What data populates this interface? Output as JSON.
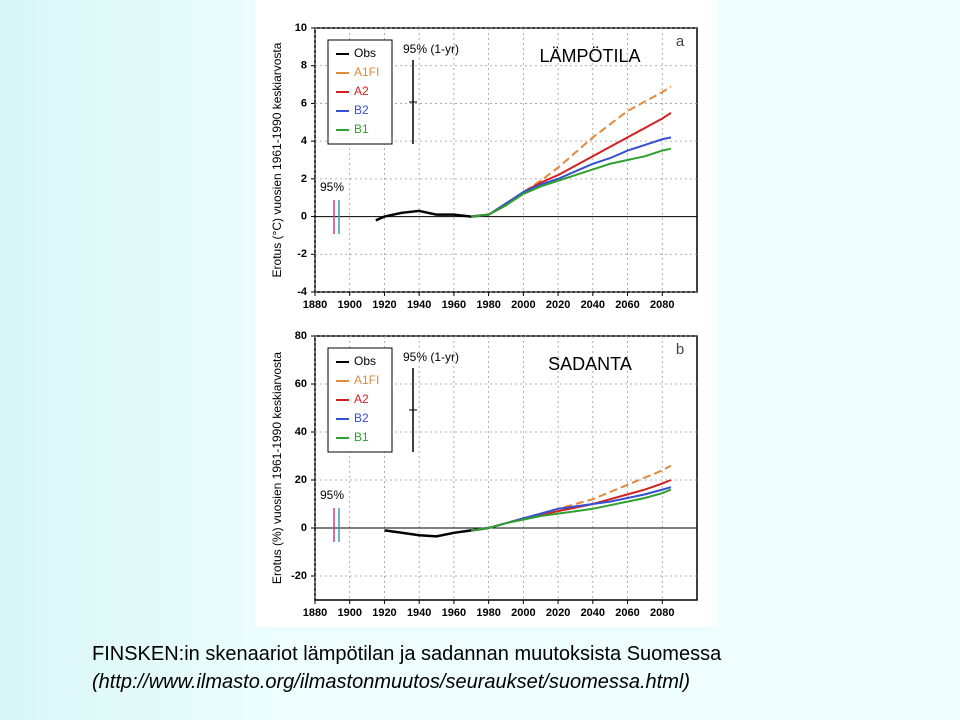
{
  "chart_data": [
    {
      "type": "line",
      "title": "LÄMPÖTILA",
      "panel": "a",
      "ylabel": "Erotus (°C) vuosien 1961-1990 keskiarvosta",
      "xlim": [
        1880,
        2100
      ],
      "xticks": [
        1880,
        1900,
        1920,
        1940,
        1960,
        1980,
        2000,
        2020,
        2040,
        2060,
        2080
      ],
      "ylim": [
        -4,
        10
      ],
      "yticks": [
        -4,
        -2,
        0,
        2,
        4,
        6,
        8,
        10
      ],
      "grid": true,
      "annotations": [
        "95% (1-yr)",
        "95%"
      ],
      "series": [
        {
          "name": "Obs",
          "color": "#000000",
          "x": [
            1915,
            1920,
            1930,
            1940,
            1950,
            1960,
            1970,
            1980
          ],
          "values": [
            -0.2,
            0.0,
            0.2,
            0.3,
            0.1,
            0.1,
            0.0,
            0.1
          ]
        },
        {
          "name": "A1FI",
          "color": "#e08a3c",
          "line_style": "dashed",
          "x": [
            1970,
            1980,
            1990,
            2000,
            2010,
            2020,
            2030,
            2040,
            2050,
            2060,
            2070,
            2080,
            2085
          ],
          "values": [
            0.0,
            0.1,
            0.6,
            1.3,
            1.9,
            2.6,
            3.4,
            4.2,
            4.9,
            5.6,
            6.1,
            6.6,
            6.9
          ]
        },
        {
          "name": "A2",
          "color": "#d42020",
          "x": [
            1970,
            1980,
            1990,
            2000,
            2010,
            2020,
            2030,
            2040,
            2050,
            2060,
            2070,
            2080,
            2085
          ],
          "values": [
            0.0,
            0.1,
            0.6,
            1.3,
            1.8,
            2.2,
            2.7,
            3.2,
            3.7,
            4.2,
            4.7,
            5.2,
            5.5
          ]
        },
        {
          "name": "B2",
          "color": "#3550d0",
          "x": [
            1970,
            1980,
            1990,
            2000,
            2010,
            2020,
            2030,
            2040,
            2050,
            2060,
            2070,
            2080,
            2085
          ],
          "values": [
            0.0,
            0.1,
            0.7,
            1.3,
            1.7,
            2.0,
            2.4,
            2.8,
            3.1,
            3.5,
            3.8,
            4.1,
            4.2
          ]
        },
        {
          "name": "B1",
          "color": "#30a030",
          "x": [
            1970,
            1980,
            1990,
            2000,
            2010,
            2020,
            2030,
            2040,
            2050,
            2060,
            2070,
            2080,
            2085
          ],
          "values": [
            0.0,
            0.1,
            0.6,
            1.2,
            1.6,
            1.9,
            2.2,
            2.5,
            2.8,
            3.0,
            3.2,
            3.5,
            3.6
          ]
        }
      ]
    },
    {
      "type": "line",
      "title": "SADANTA",
      "panel": "b",
      "ylabel": "Erotus (%) vuosien 1961-1990 keskiarvosta",
      "xlim": [
        1880,
        2100
      ],
      "xticks": [
        1880,
        1900,
        1920,
        1940,
        1960,
        1980,
        2000,
        2020,
        2040,
        2060,
        2080
      ],
      "ylim": [
        -30,
        80
      ],
      "yticks": [
        -20,
        0,
        20,
        40,
        60,
        80
      ],
      "grid": true,
      "annotations": [
        "95% (1-yr)",
        "95%"
      ],
      "series": [
        {
          "name": "Obs",
          "color": "#000000",
          "x": [
            1920,
            1930,
            1940,
            1950,
            1960,
            1970,
            1980
          ],
          "values": [
            -1.0,
            -2.0,
            -3.0,
            -3.5,
            -2.0,
            -1.0,
            0.0
          ]
        },
        {
          "name": "A1FI",
          "color": "#e08a3c",
          "line_style": "dashed",
          "x": [
            1970,
            1980,
            1990,
            2000,
            2010,
            2020,
            2030,
            2040,
            2050,
            2060,
            2070,
            2080,
            2085
          ],
          "values": [
            -1.0,
            0.0,
            2.0,
            4.0,
            6.0,
            8.0,
            10.0,
            12.0,
            15.0,
            18.0,
            21.0,
            24.0,
            26.0
          ]
        },
        {
          "name": "A2",
          "color": "#d42020",
          "x": [
            1970,
            1980,
            1990,
            2000,
            2010,
            2020,
            2030,
            2040,
            2050,
            2060,
            2070,
            2080,
            2085
          ],
          "values": [
            -1.0,
            0.0,
            2.0,
            4.0,
            5.5,
            7.0,
            8.5,
            10.0,
            12.0,
            14.0,
            16.0,
            18.5,
            20.0
          ]
        },
        {
          "name": "B2",
          "color": "#3550d0",
          "x": [
            1970,
            1980,
            1990,
            2000,
            2010,
            2020,
            2030,
            2040,
            2050,
            2060,
            2070,
            2080,
            2085
          ],
          "values": [
            -1.0,
            0.0,
            2.0,
            4.0,
            6.0,
            8.0,
            9.0,
            10.0,
            11.0,
            12.5,
            14.0,
            16.0,
            17.0
          ]
        },
        {
          "name": "B1",
          "color": "#30a030",
          "x": [
            1970,
            1980,
            1990,
            2000,
            2010,
            2020,
            2030,
            2040,
            2050,
            2060,
            2070,
            2080,
            2085
          ],
          "values": [
            -1.0,
            0.0,
            2.0,
            3.5,
            5.0,
            6.0,
            7.0,
            8.0,
            9.5,
            11.0,
            12.5,
            14.5,
            16.0
          ]
        }
      ]
    }
  ],
  "caption": [
    "FINSKEN:in skenaariot lämpötilan ja sadannan muutoksista Suomessa",
    "(http://www.ilmasto.org/ilmastonmuutos/seuraukset/suomessa.html)"
  ]
}
